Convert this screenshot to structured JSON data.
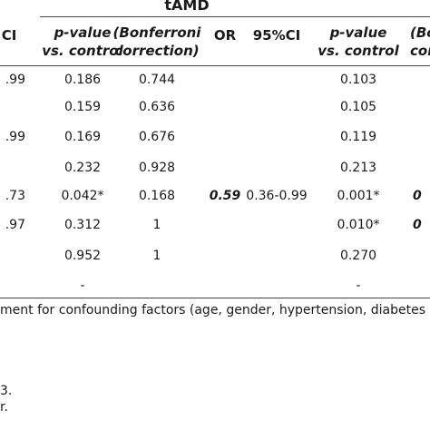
{
  "group_title": "tAMD",
  "headers": {
    "ci_fragment": "CI",
    "p_value": [
      "p-value",
      "vs. control"
    ],
    "bonferroni": [
      "(Bonferroni",
      "correction)"
    ],
    "or": "OR",
    "ci95": "95%CI",
    "p_value2": [
      "p-value",
      "vs. control"
    ],
    "bonferroni_fragment": [
      "(Bo",
      "corre"
    ]
  },
  "rows": [
    {
      "ci": ".99",
      "p": "0.186",
      "bonf": "0.744",
      "or": "",
      "ci95": "",
      "p2": "0.103",
      "b2": ""
    },
    {
      "ci": "",
      "p": "0.159",
      "bonf": "0.636",
      "or": "",
      "ci95": "",
      "p2": "0.105",
      "b2": ""
    },
    {
      "ci": ".99",
      "p": "0.169",
      "bonf": "0.676",
      "or": "",
      "ci95": "",
      "p2": "0.119",
      "b2": ""
    },
    {
      "ci": "",
      "p": "0.232",
      "bonf": "0.928",
      "or": "",
      "ci95": "",
      "p2": "0.213",
      "b2": ""
    },
    {
      "ci": ".73",
      "p": "0.042*",
      "bonf": "0.168",
      "or": "0.59",
      "ci95": "0.36-0.99",
      "p2": "0.001*",
      "b2": "0"
    },
    {
      "ci": ".97",
      "p": "0.312",
      "bonf": "1",
      "or": "",
      "ci95": "",
      "p2": "0.010*",
      "b2": "0"
    },
    {
      "ci": "",
      "p": "0.952",
      "bonf": "1",
      "or": "",
      "ci95": "",
      "p2": "0.270",
      "b2": ""
    },
    {
      "ci": "",
      "p": "-",
      "bonf": "",
      "or": "",
      "ci95": "",
      "p2": "-",
      "b2": ""
    }
  ],
  "footnote": "ment for confounding factors (age, gender, hypertension, diabetes me",
  "note1": "3.",
  "note2": "r."
}
